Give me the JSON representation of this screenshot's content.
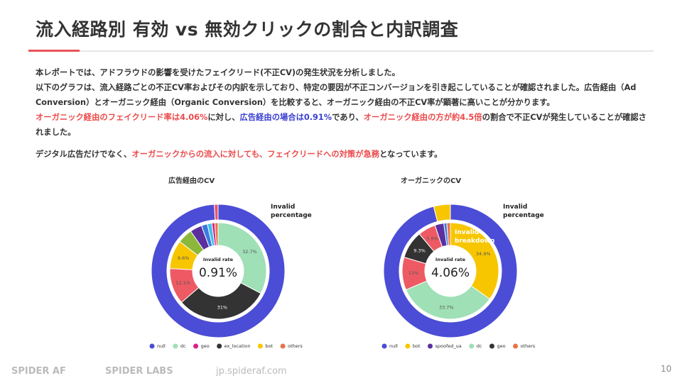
{
  "header": {
    "title": "流入経路別  有効 vs 無効クリックの割合と内訳調査"
  },
  "body": [
    [
      {
        "text": "本レポートでは、アドフラウドの影響を受けたフェイクリード(不正CV)の発生状況を分析しました。",
        "style": "normal"
      }
    ],
    [
      {
        "text": "以下のグラフは、流入経路ごとの不正CV率およびその内訳を示しており、特定の要因が不正コンバージョンを引き起こしていることが確認されました。広告経由（Ad Conversion）とオーガニック経由（Organic Conversion）を比較すると、オーガニック経由の不正CV率が顕著に高いことが分かります。",
        "style": "normal"
      }
    ],
    [
      {
        "text": "オーガニック経由のフェイクリード率は4.06%",
        "style": "red"
      },
      {
        "text": "に対し、",
        "style": "normal"
      },
      {
        "text": "広告経由の場合は0.91%",
        "style": "blue"
      },
      {
        "text": "であり、",
        "style": "normal"
      },
      {
        "text": "オーガニック経由の方が約4.5倍",
        "style": "red"
      },
      {
        "text": "の割合で不正CVが発生していることが確認されました。",
        "style": "normal"
      }
    ],
    [
      {
        "text": "デジタル広告だけでなく、",
        "style": "normal"
      },
      {
        "text": "オーガニックからの流入に対しても、フェイクリードへの対策が急務",
        "style": "red"
      },
      {
        "text": "となっています。",
        "style": "normal"
      }
    ]
  ],
  "chart_data": [
    {
      "type": "donut",
      "title": "広告経由のCV",
      "outer_label": "Invalid percentage",
      "outer": {
        "values": [
          99.09,
          0.91
        ],
        "colors": [
          "#4b4dd6",
          "#e8546a"
        ],
        "value_labels": [
          null,
          "0.91%"
        ]
      },
      "center_label": "Invalid rate",
      "inner": {
        "values": [
          32.7,
          31,
          12.1,
          9.6,
          5,
          4,
          2,
          1.5,
          1,
          1.1
        ],
        "colors": [
          "#9fe0b6",
          "#333333",
          "#ee5a64",
          "#f7c600",
          "#8bb83a",
          "#5b2fa0",
          "#3a7be0",
          "#41c0e8",
          "#d6238a",
          "#e8734a"
        ],
        "value_labels": [
          "32.7%",
          "31%",
          "12.1%",
          "9.6%",
          null,
          null,
          null,
          null,
          null,
          null
        ]
      },
      "legend": [
        {
          "name": "null",
          "color": "#4b4dd6"
        },
        {
          "name": "dc",
          "color": "#9fe0b6"
        },
        {
          "name": "geo",
          "color": "#d6238a"
        },
        {
          "name": "ex_location",
          "color": "#333333"
        },
        {
          "name": "bot",
          "color": "#f7c600"
        },
        {
          "name": "others",
          "color": "#e8734a"
        }
      ]
    },
    {
      "type": "donut",
      "title": "オーガニックのCV",
      "outer_label": "Invalid percentage",
      "inner_label": "Invalid breakdown",
      "outer": {
        "values": [
          95.94,
          4.06
        ],
        "colors": [
          "#4b4dd6",
          "#f7c600"
        ],
        "value_labels": [
          null,
          "4.06%"
        ]
      },
      "center_label": "Invalid rate",
      "inner": {
        "values": [
          34.9,
          33.7,
          11,
          9.3,
          5.9,
          3,
          1,
          1.2
        ],
        "colors": [
          "#f7c600",
          "#9fe0b6",
          "#ee5a64",
          "#333333",
          "#ee5a64",
          "#5b2fa0",
          "#3a7be0",
          "#e8734a"
        ],
        "value_labels": [
          "34.9%",
          "33.7%",
          "11%",
          "9.3%",
          "5.9%",
          null,
          null,
          null
        ]
      },
      "legend": [
        {
          "name": "null",
          "color": "#4b4dd6"
        },
        {
          "name": "bot",
          "color": "#f7c600"
        },
        {
          "name": "spoofed_ua",
          "color": "#5b2fa0"
        },
        {
          "name": "dc",
          "color": "#9fe0b6"
        },
        {
          "name": "geo",
          "color": "#333333"
        },
        {
          "name": "others",
          "color": "#e8734a"
        }
      ]
    }
  ],
  "footer": {
    "logos": [
      "SPIDER AF",
      "SPIDER LABS",
      "jp.spideraf.com"
    ],
    "page": "10"
  }
}
